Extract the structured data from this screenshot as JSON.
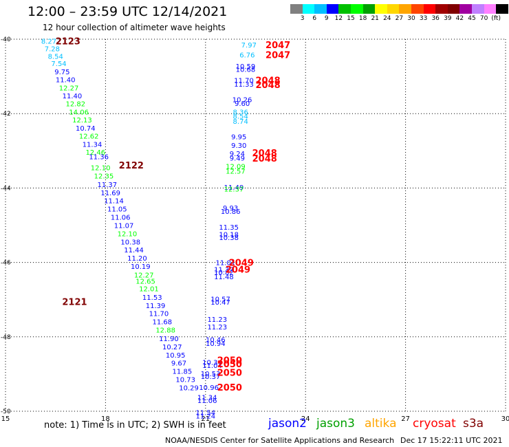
{
  "header": {
    "title": "12:00 – 23:59 UTC 12/14/2021",
    "subtitle": "12 hour collection of altimeter wave heights"
  },
  "colorbar": {
    "colors": [
      "#808080",
      "#00ffff",
      "#00bfff",
      "#0000ff",
      "#00c000",
      "#00ff00",
      "#00a000",
      "#ffff00",
      "#ffd700",
      "#ffa500",
      "#ff4500",
      "#ff0000",
      "#a00000",
      "#800000",
      "#a000a0",
      "#c080ff",
      "#ff80ff",
      "#000000"
    ],
    "labels": [
      "3",
      "6",
      "9",
      "12",
      "15",
      "18",
      "21",
      "24",
      "27",
      "30",
      "33",
      "36",
      "39",
      "42",
      "45",
      "70",
      "(ft)"
    ]
  },
  "axes": {
    "x_ticks": [
      "15",
      "18",
      "21",
      "24",
      "27",
      "30"
    ],
    "y_ticks": [
      "-40",
      "-42",
      "-44",
      "-46",
      "-48",
      "-50"
    ],
    "x_range": [
      15,
      30
    ],
    "y_range": [
      -50,
      -40
    ]
  },
  "passes": [
    {
      "label": "2123",
      "color": "#800000",
      "lon": 16.5,
      "lat": -40.05
    },
    {
      "label": "2122",
      "color": "#800000",
      "lon": 18.4,
      "lat": -43.38
    },
    {
      "label": "2121",
      "color": "#800000",
      "lon": 16.7,
      "lat": -47.05
    },
    {
      "label": "2047",
      "color": "#ff0000",
      "lon": 22.8,
      "lat": -40.15
    },
    {
      "label": "2047",
      "color": "#ff0000",
      "lon": 22.8,
      "lat": -40.42
    },
    {
      "label": "2048",
      "color": "#ff0000",
      "lon": 22.5,
      "lat": -41.1
    },
    {
      "label": "2048",
      "color": "#ff0000",
      "lon": 22.5,
      "lat": -41.22
    },
    {
      "label": "2048",
      "color": "#ff0000",
      "lon": 22.4,
      "lat": -43.05
    },
    {
      "label": "2048",
      "color": "#ff0000",
      "lon": 22.4,
      "lat": -43.2
    },
    {
      "label": "2049",
      "color": "#ff0000",
      "lon": 21.7,
      "lat": -46.0
    },
    {
      "label": "2049",
      "color": "#ff0000",
      "lon": 21.6,
      "lat": -46.18
    },
    {
      "label": "2050",
      "color": "#ff0000",
      "lon": 21.35,
      "lat": -48.62
    },
    {
      "label": "2050",
      "color": "#ff0000",
      "lon": 21.35,
      "lat": -48.72
    },
    {
      "label": "2050",
      "color": "#ff0000",
      "lon": 21.35,
      "lat": -48.96
    },
    {
      "label": "2050",
      "color": "#ff0000",
      "lon": 21.35,
      "lat": -49.35
    }
  ],
  "measurements": [
    {
      "v": "8.27",
      "lon": 16.3,
      "lat": -40.05,
      "c": "#00bfff"
    },
    {
      "v": "7.28",
      "lon": 16.4,
      "lat": -40.25,
      "c": "#00bfff"
    },
    {
      "v": "8.54",
      "lon": 16.5,
      "lat": -40.45,
      "c": "#00bfff"
    },
    {
      "v": "7.54",
      "lon": 16.6,
      "lat": -40.65,
      "c": "#00bfff"
    },
    {
      "v": "9.75",
      "lon": 16.7,
      "lat": -40.87,
      "c": "#0000ff"
    },
    {
      "v": "11.40",
      "lon": 16.8,
      "lat": -41.08,
      "c": "#0000ff"
    },
    {
      "v": "12.27",
      "lon": 16.9,
      "lat": -41.3,
      "c": "#00ff00"
    },
    {
      "v": "11.40",
      "lon": 17.0,
      "lat": -41.52,
      "c": "#0000ff"
    },
    {
      "v": "12.82",
      "lon": 17.1,
      "lat": -41.73,
      "c": "#00ff00"
    },
    {
      "v": "14.06",
      "lon": 17.2,
      "lat": -41.95,
      "c": "#00ff00"
    },
    {
      "v": "12.13",
      "lon": 17.3,
      "lat": -42.16,
      "c": "#00ff00"
    },
    {
      "v": "10.74",
      "lon": 17.4,
      "lat": -42.38,
      "c": "#0000ff"
    },
    {
      "v": "12.62",
      "lon": 17.5,
      "lat": -42.6,
      "c": "#00ff00"
    },
    {
      "v": "11.34",
      "lon": 17.6,
      "lat": -42.82,
      "c": "#0000ff"
    },
    {
      "v": "12.46",
      "lon": 17.7,
      "lat": -43.03,
      "c": "#00ff00"
    },
    {
      "v": "11.36",
      "lon": 17.8,
      "lat": -43.15,
      "c": "#0000ff"
    },
    {
      "v": "12.10",
      "lon": 17.85,
      "lat": -43.45,
      "c": "#00ff00"
    },
    {
      "v": "12.35",
      "lon": 17.95,
      "lat": -43.67,
      "c": "#00ff00"
    },
    {
      "v": "11.37",
      "lon": 18.05,
      "lat": -43.9,
      "c": "#0000ff"
    },
    {
      "v": "11.69",
      "lon": 18.15,
      "lat": -44.12,
      "c": "#0000ff"
    },
    {
      "v": "11.14",
      "lon": 18.25,
      "lat": -44.33,
      "c": "#0000ff"
    },
    {
      "v": "11.05",
      "lon": 18.35,
      "lat": -44.56,
      "c": "#0000ff"
    },
    {
      "v": "11.06",
      "lon": 18.45,
      "lat": -44.78,
      "c": "#0000ff"
    },
    {
      "v": "11.07",
      "lon": 18.55,
      "lat": -45.0,
      "c": "#0000ff"
    },
    {
      "v": "12.10",
      "lon": 18.65,
      "lat": -45.22,
      "c": "#00ff00"
    },
    {
      "v": "10.38",
      "lon": 18.75,
      "lat": -45.44,
      "c": "#0000ff"
    },
    {
      "v": "11.44",
      "lon": 18.85,
      "lat": -45.66,
      "c": "#0000ff"
    },
    {
      "v": "11.20",
      "lon": 18.95,
      "lat": -45.88,
      "c": "#0000ff"
    },
    {
      "v": "10.19",
      "lon": 19.05,
      "lat": -46.1,
      "c": "#0000ff"
    },
    {
      "v": "12.27",
      "lon": 19.15,
      "lat": -46.33,
      "c": "#00ff00"
    },
    {
      "v": "12.65",
      "lon": 19.2,
      "lat": -46.5,
      "c": "#00ff00"
    },
    {
      "v": "12.01",
      "lon": 19.3,
      "lat": -46.7,
      "c": "#00ff00"
    },
    {
      "v": "11.53",
      "lon": 19.4,
      "lat": -46.93,
      "c": "#0000ff"
    },
    {
      "v": "11.39",
      "lon": 19.5,
      "lat": -47.15,
      "c": "#0000ff"
    },
    {
      "v": "11.70",
      "lon": 19.6,
      "lat": -47.37,
      "c": "#0000ff"
    },
    {
      "v": "11.68",
      "lon": 19.7,
      "lat": -47.59,
      "c": "#0000ff"
    },
    {
      "v": "12.88",
      "lon": 19.8,
      "lat": -47.81,
      "c": "#00ff00"
    },
    {
      "v": "11.90",
      "lon": 19.9,
      "lat": -48.04,
      "c": "#0000ff"
    },
    {
      "v": "10.27",
      "lon": 20.0,
      "lat": -48.26,
      "c": "#0000ff"
    },
    {
      "v": "10.95",
      "lon": 20.1,
      "lat": -48.48,
      "c": "#0000ff"
    },
    {
      "v": "9.67",
      "lon": 20.2,
      "lat": -48.7,
      "c": "#0000ff"
    },
    {
      "v": "11.85",
      "lon": 20.3,
      "lat": -48.92,
      "c": "#0000ff"
    },
    {
      "v": "10.73",
      "lon": 20.4,
      "lat": -49.14,
      "c": "#0000ff"
    },
    {
      "v": "10.29",
      "lon": 20.5,
      "lat": -49.36,
      "c": "#0000ff"
    },
    {
      "v": "7.97",
      "lon": 22.3,
      "lat": -40.15,
      "c": "#00bfff"
    },
    {
      "v": "6.76",
      "lon": 22.25,
      "lat": -40.42,
      "c": "#00bfff"
    },
    {
      "v": "10.59",
      "lon": 22.2,
      "lat": -40.72,
      "c": "#0000ff"
    },
    {
      "v": "10.68",
      "lon": 22.2,
      "lat": -40.8,
      "c": "#0000ff"
    },
    {
      "v": "11.70",
      "lon": 22.15,
      "lat": -41.1,
      "c": "#0000ff"
    },
    {
      "v": "11.33",
      "lon": 22.15,
      "lat": -41.2,
      "c": "#0000ff"
    },
    {
      "v": "10.26",
      "lon": 22.1,
      "lat": -41.62,
      "c": "#0000ff"
    },
    {
      "v": "9.60",
      "lon": 22.1,
      "lat": -41.72,
      "c": "#0000ff"
    },
    {
      "v": "8.36",
      "lon": 22.05,
      "lat": -41.95,
      "c": "#00bfff"
    },
    {
      "v": "8.54",
      "lon": 22.05,
      "lat": -42.06,
      "c": "#00bfff"
    },
    {
      "v": "8.74",
      "lon": 22.05,
      "lat": -42.2,
      "c": "#00bfff"
    },
    {
      "v": "9.95",
      "lon": 22.0,
      "lat": -42.62,
      "c": "#0000ff"
    },
    {
      "v": "9.30",
      "lon": 22.0,
      "lat": -42.85,
      "c": "#0000ff"
    },
    {
      "v": "9.24",
      "lon": 21.95,
      "lat": -43.07,
      "c": "#0000ff"
    },
    {
      "v": "9.49",
      "lon": 21.95,
      "lat": -43.19,
      "c": "#0000ff"
    },
    {
      "v": "12.09",
      "lon": 21.9,
      "lat": -43.41,
      "c": "#00ff00"
    },
    {
      "v": "12.57",
      "lon": 21.9,
      "lat": -43.54,
      "c": "#00ff00"
    },
    {
      "v": "11.49",
      "lon": 21.85,
      "lat": -43.97,
      "c": "#0000ff"
    },
    {
      "v": "12.37",
      "lon": 21.85,
      "lat": -44.02,
      "c": "#00ff00"
    },
    {
      "v": "9.93",
      "lon": 21.75,
      "lat": -44.53,
      "c": "#0000ff"
    },
    {
      "v": "10.86",
      "lon": 21.75,
      "lat": -44.62,
      "c": "#0000ff"
    },
    {
      "v": "11.35",
      "lon": 21.7,
      "lat": -45.05,
      "c": "#0000ff"
    },
    {
      "v": "10.18",
      "lon": 21.7,
      "lat": -45.24,
      "c": "#0000ff"
    },
    {
      "v": "10.38",
      "lon": 21.7,
      "lat": -45.32,
      "c": "#0000ff"
    },
    {
      "v": "11.01",
      "lon": 21.6,
      "lat": -46.0,
      "c": "#0000ff"
    },
    {
      "v": "11.37",
      "lon": 21.55,
      "lat": -46.18,
      "c": "#0000ff"
    },
    {
      "v": "10.82",
      "lon": 21.55,
      "lat": -46.26,
      "c": "#0000ff"
    },
    {
      "v": "11.48",
      "lon": 21.55,
      "lat": -46.38,
      "c": "#0000ff"
    },
    {
      "v": "10.57",
      "lon": 21.45,
      "lat": -46.98,
      "c": "#0000ff"
    },
    {
      "v": "10.47",
      "lon": 21.45,
      "lat": -47.06,
      "c": "#0000ff"
    },
    {
      "v": "11.23",
      "lon": 21.35,
      "lat": -47.52,
      "c": "#0000ff"
    },
    {
      "v": "11.23",
      "lon": 21.35,
      "lat": -47.73,
      "c": "#0000ff"
    },
    {
      "v": "10.46",
      "lon": 21.3,
      "lat": -48.07,
      "c": "#0000ff"
    },
    {
      "v": "10.94",
      "lon": 21.3,
      "lat": -48.17,
      "c": "#0000ff"
    },
    {
      "v": "10.34",
      "lon": 21.2,
      "lat": -48.68,
      "c": "#0000ff"
    },
    {
      "v": "11.04",
      "lon": 21.2,
      "lat": -48.76,
      "c": "#0000ff"
    },
    {
      "v": "10.53",
      "lon": 21.15,
      "lat": -48.98,
      "c": "#0000ff"
    },
    {
      "v": "10.37",
      "lon": 21.15,
      "lat": -49.06,
      "c": "#0000ff"
    },
    {
      "v": "10.96",
      "lon": 21.1,
      "lat": -49.35,
      "c": "#0000ff"
    },
    {
      "v": "11.34",
      "lon": 21.05,
      "lat": -49.62,
      "c": "#0000ff"
    },
    {
      "v": "11.06",
      "lon": 21.05,
      "lat": -49.7,
      "c": "#0000ff"
    },
    {
      "v": "11.54",
      "lon": 21.0,
      "lat": -50.03,
      "c": "#0000ff"
    },
    {
      "v": "11.24",
      "lon": 21.0,
      "lat": -50.12,
      "c": "#0000ff"
    }
  ],
  "legend": {
    "note": "note:  1) Time is in UTC;  2) SWH is in feet",
    "satellites": [
      {
        "name": "jason2",
        "color": "#0000ff"
      },
      {
        "name": "jason3",
        "color": "#00a000"
      },
      {
        "name": "altika",
        "color": "#ffa500"
      },
      {
        "name": "cryosat",
        "color": "#ff0000"
      },
      {
        "name": "s3a",
        "color": "#800000"
      }
    ]
  },
  "footer": {
    "credit": "NOAA/NESDIS Center for Satellite Applications and Research",
    "timestamp": "Dec 17 15:22:11 UTC 2021"
  }
}
